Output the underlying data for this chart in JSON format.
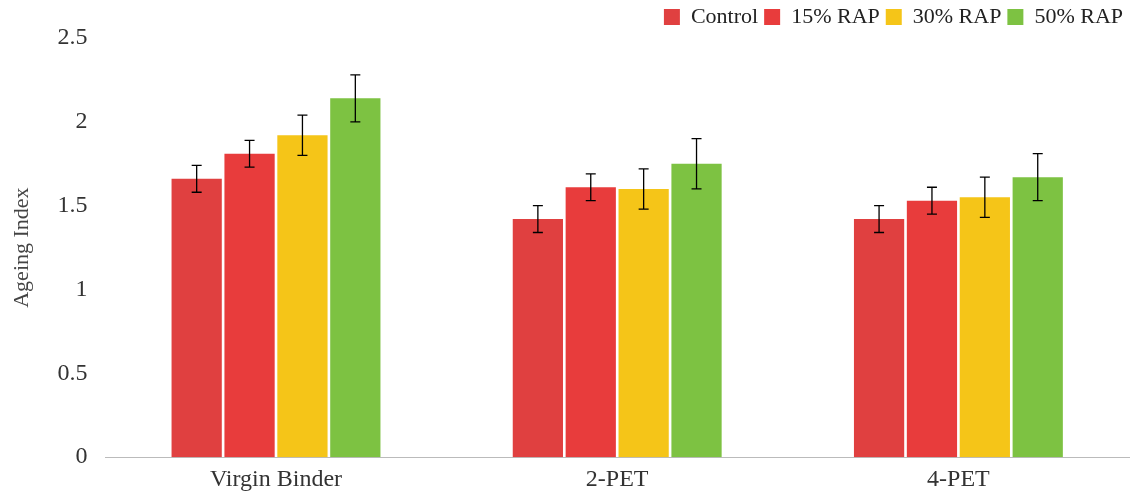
{
  "chart_data": {
    "type": "bar",
    "ylabel": "Ageing Index",
    "categories": [
      "Virgin Binder",
      "2-PET",
      "4-PET"
    ],
    "series": [
      {
        "name": "Control",
        "color": "#e04040",
        "values": [
          1.66,
          1.42,
          1.42
        ],
        "errors": [
          0.08,
          0.08,
          0.08
        ]
      },
      {
        "name": "15% RAP",
        "color": "#e83c3c",
        "values": [
          1.81,
          1.61,
          1.53
        ],
        "errors": [
          0.08,
          0.08,
          0.08
        ]
      },
      {
        "name": "30% RAP",
        "color": "#f5c518",
        "values": [
          1.92,
          1.6,
          1.55
        ],
        "errors": [
          0.12,
          0.12,
          0.12
        ]
      },
      {
        "name": "50% RAP",
        "color": "#7dc242",
        "values": [
          2.14,
          1.75,
          1.67
        ],
        "errors": [
          0.14,
          0.15,
          0.14
        ]
      }
    ],
    "ylim": [
      0,
      2.5
    ],
    "yticks": [
      0,
      0.5,
      1,
      1.5,
      2,
      2.5
    ],
    "grid": false,
    "legend": "top right"
  }
}
